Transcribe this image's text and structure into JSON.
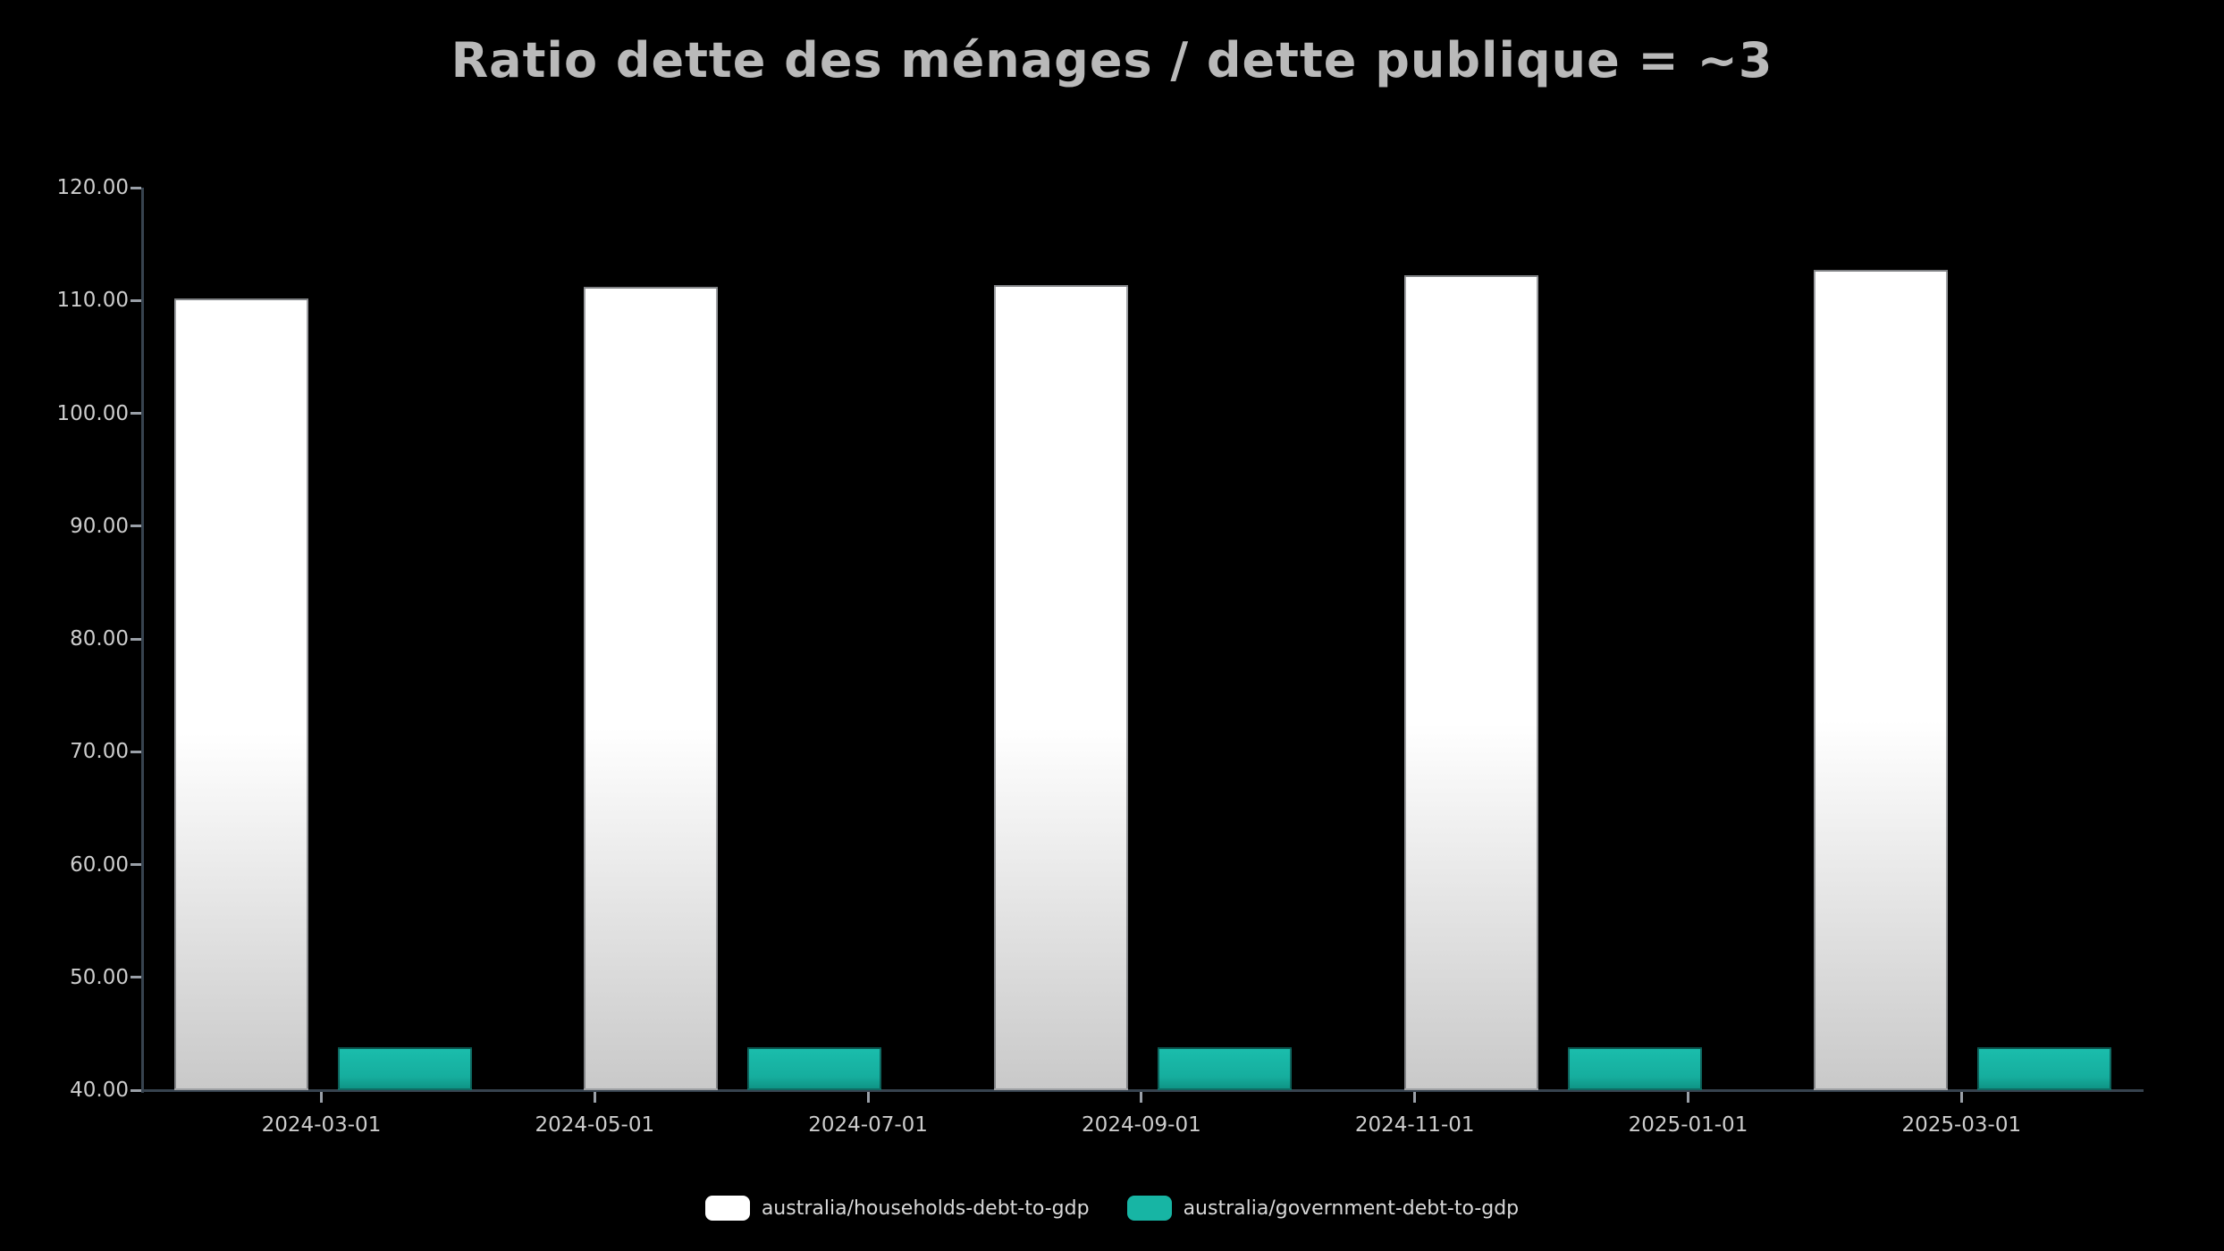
{
  "title": "Ratio dette des ménages / dette publique = ~3",
  "legend": {
    "items": [
      {
        "label": "australia/households-debt-to-gdp",
        "color": "#ffffff"
      },
      {
        "label": "australia/government-debt-to-gdp",
        "color": "#17b5a4"
      }
    ]
  },
  "y_axis": {
    "tick_labels": [
      "120.00",
      "110.00",
      "100.00",
      "90.00",
      "80.00",
      "70.00",
      "60.00",
      "50.00",
      "40.00"
    ],
    "min": 40,
    "max": 120
  },
  "x_axis": {
    "tick_labels": [
      "2024-03-01",
      "2024-05-01",
      "2024-07-01",
      "2024-09-01",
      "2024-11-01",
      "2025-01-01",
      "2025-03-01"
    ]
  },
  "chart_data": {
    "type": "bar",
    "title": "Ratio dette des ménages / dette publique = ~3",
    "categories": [
      "2024-03-01",
      "2024-06-01",
      "2024-09-01",
      "2024-12-01",
      "2025-03-01"
    ],
    "series": [
      {
        "name": "australia/households-debt-to-gdp",
        "color": "#ffffff",
        "values": [
          110.2,
          111.2,
          111.4,
          112.2,
          112.7
        ]
      },
      {
        "name": "australia/government-debt-to-gdp",
        "color": "#17b5a4",
        "values": [
          43.8,
          43.8,
          43.8,
          43.8,
          43.8
        ]
      }
    ],
    "ylim": [
      40,
      120
    ],
    "y_tick_step": 10,
    "x_axis_type": "time",
    "x_tick_labels_shown": [
      "2024-03-01",
      "2024-05-01",
      "2024-07-01",
      "2024-09-01",
      "2024-11-01",
      "2025-01-01",
      "2025-03-01"
    ],
    "grid": false,
    "legend_position": "bottom",
    "background": "#000000"
  },
  "colors": {
    "background": "#000000",
    "title_text": "#b9b9b9",
    "axis_line": "#37434f",
    "tick_mark": "#9aa0a8",
    "tick_label": "#cdcdcd",
    "legend_text": "#d8d8d8",
    "bar_households": "#ffffff",
    "bar_government": "#17b5a4"
  }
}
